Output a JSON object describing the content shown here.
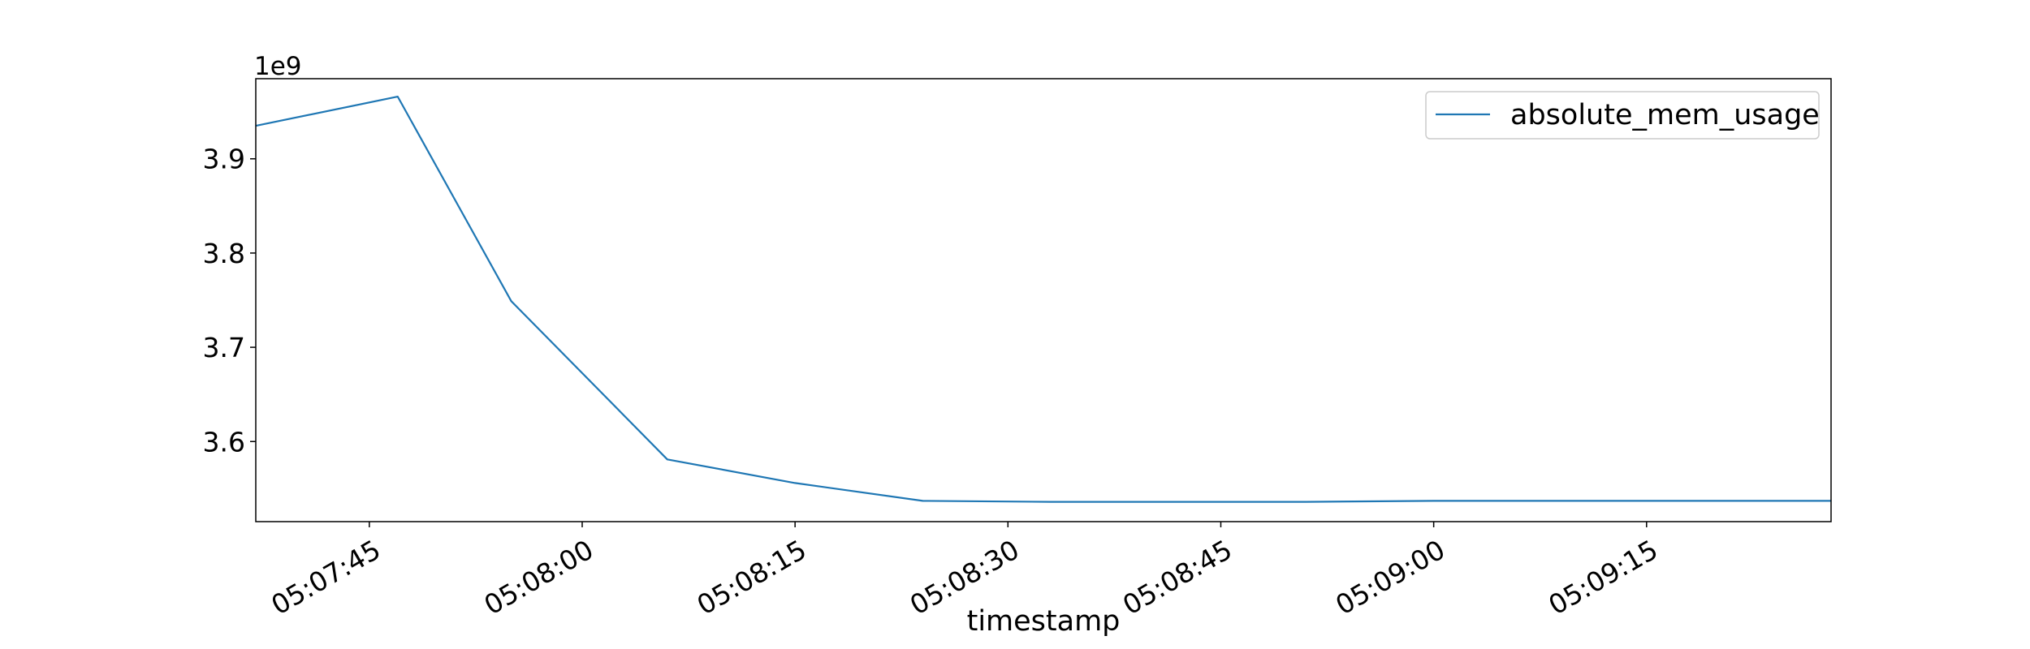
{
  "chart_data": {
    "type": "line",
    "title": "",
    "xlabel": "timestamp",
    "ylabel": "",
    "y_offset_label": "1e9",
    "x_axis_type": "time",
    "xlim": [
      "05:07:37",
      "05:09:28"
    ],
    "ylim": [
      3.515,
      3.985
    ],
    "x_ticks": [
      "05:07:45",
      "05:08:00",
      "05:08:15",
      "05:08:30",
      "05:08:45",
      "05:09:00",
      "05:09:15"
    ],
    "y_ticks": [
      "3.6",
      "3.7",
      "3.8",
      "3.9"
    ],
    "grid": false,
    "legend_position": "top-right",
    "colors": {
      "series": "#1f77b4",
      "axes": "#000000",
      "background": "#ffffff"
    },
    "series": [
      {
        "name": "absolute_mem_usage",
        "x": [
          "05:07:37",
          "05:07:47",
          "05:07:55",
          "05:08:06",
          "05:08:15",
          "05:08:24",
          "05:08:33",
          "05:08:42",
          "05:08:51",
          "05:09:00",
          "05:09:09",
          "05:09:18",
          "05:09:28"
        ],
        "y": [
          3.935,
          3.966,
          3.749,
          3.581,
          3.556,
          3.537,
          3.536,
          3.536,
          3.536,
          3.537,
          3.537,
          3.537,
          3.537
        ]
      }
    ]
  }
}
